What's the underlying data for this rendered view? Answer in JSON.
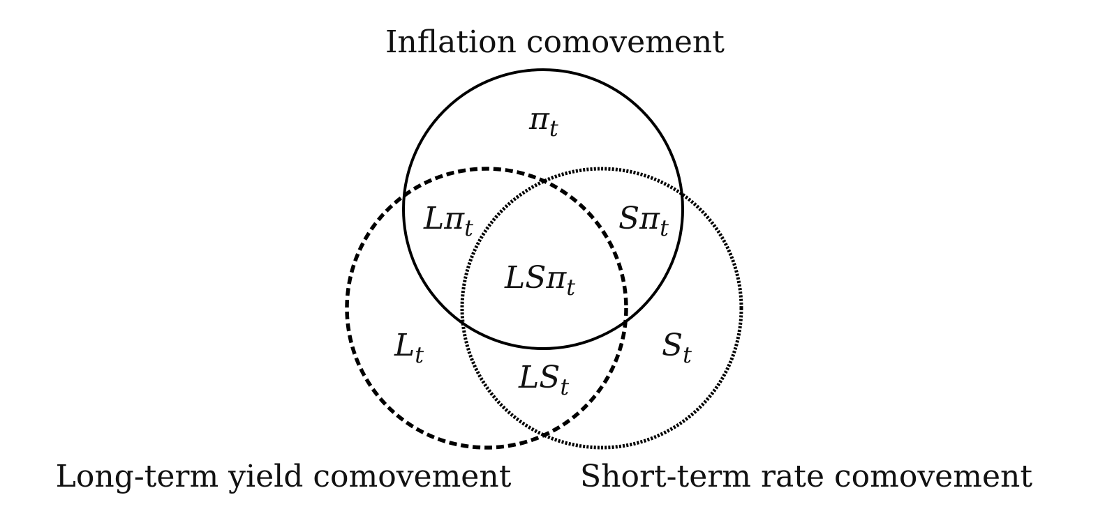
{
  "sets": [
    {
      "id": "inflation",
      "label": "Inflation comovement",
      "line_style": "solid"
    },
    {
      "id": "long",
      "label": "Long-term yield comovement",
      "line_style": "dashed"
    },
    {
      "id": "short",
      "label": "Short-term rate comovement",
      "line_style": "dotted"
    }
  ],
  "regions": {
    "pi": {
      "main": "π",
      "sub": "t"
    },
    "lpi": {
      "main": "Lπ",
      "sub": "t"
    },
    "spi": {
      "main": "Sπ",
      "sub": "t"
    },
    "lspi": {
      "main": "LSπ",
      "sub": "t"
    },
    "l": {
      "main": "L",
      "sub": "t"
    },
    "s": {
      "main": "S",
      "sub": "t"
    },
    "ls": {
      "main": "LS",
      "sub": "t"
    }
  },
  "colors": {
    "stroke": "#000000",
    "text": "#111111"
  }
}
